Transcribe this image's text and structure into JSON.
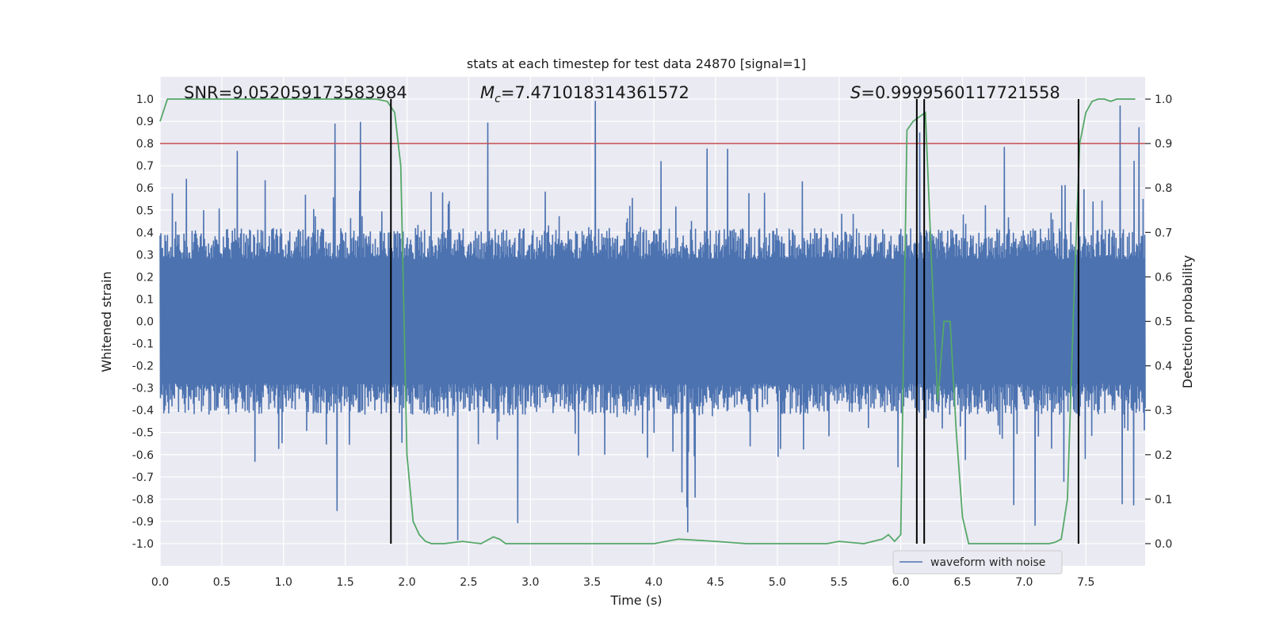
{
  "chart_data": {
    "type": "line",
    "title": "stats at each timestep for test data 24870 [signal=1]",
    "xlabel": "Time (s)",
    "ylabel_left": "Whitened strain",
    "ylabel_right": "Detection probability",
    "xlim": [
      0.0,
      7.98
    ],
    "ylim_left": [
      -1.1,
      1.1
    ],
    "ylim_right": [
      -0.05,
      1.05
    ],
    "x_ticks": [
      "0.0",
      "0.5",
      "1.0",
      "1.5",
      "2.0",
      "2.5",
      "3.0",
      "3.5",
      "4.0",
      "4.5",
      "5.0",
      "5.5",
      "6.0",
      "6.5",
      "7.0",
      "7.5"
    ],
    "y_ticks_left": [
      "1.0",
      "0.9",
      "0.8",
      "0.7",
      "0.6",
      "0.5",
      "0.4",
      "0.3",
      "0.2",
      "0.1",
      "0.0",
      "-0.1",
      "-0.2",
      "-0.3",
      "-0.4",
      "-0.5",
      "-0.6",
      "-0.7",
      "-0.8",
      "-0.9",
      "-1.0"
    ],
    "y_ticks_right": [
      "1.0",
      "0.9",
      "0.8",
      "0.7",
      "0.6",
      "0.5",
      "0.4",
      "0.3",
      "0.2",
      "0.1",
      "0.0"
    ],
    "grid": true,
    "legend_position": "lower-right",
    "annotations": {
      "snr": "SNR=9.052059173583984",
      "mc_symbol": "M",
      "mc_sub": "c",
      "mc_value": "=7.471018314361572",
      "s_symbol": "S",
      "s_value": "=0.9999560117721558"
    },
    "series": [
      {
        "name": "waveform with noise",
        "axis": "left",
        "color": "#4c72b0",
        "style": "noisy-strain",
        "approx_envelope": [
          -1.0,
          1.0
        ]
      },
      {
        "axis": "right",
        "color": "#55a868",
        "x": [
          0.0,
          0.06,
          0.2,
          0.5,
          1.0,
          1.5,
          1.75,
          1.84,
          1.9,
          1.95,
          2.0,
          2.05,
          2.1,
          2.15,
          2.2,
          2.3,
          2.45,
          2.6,
          2.7,
          2.75,
          2.8,
          3.0,
          3.5,
          4.0,
          4.1,
          4.2,
          4.5,
          4.75,
          5.0,
          5.4,
          5.5,
          5.7,
          5.85,
          5.9,
          5.95,
          6.0,
          6.05,
          6.1,
          6.2,
          6.25,
          6.3,
          6.35,
          6.4,
          6.45,
          6.5,
          6.55,
          6.6,
          7.0,
          7.2,
          7.25,
          7.3,
          7.35,
          7.4,
          7.45,
          7.5,
          7.55,
          7.6,
          7.65,
          7.7,
          7.75,
          7.8,
          7.9
        ],
        "y": [
          0.95,
          1.0,
          1.0,
          1.0,
          1.0,
          1.0,
          1.0,
          0.995,
          0.97,
          0.85,
          0.2,
          0.05,
          0.02,
          0.005,
          0.0,
          0.0,
          0.005,
          0.0,
          0.015,
          0.01,
          0.0,
          0.0,
          0.0,
          0.0,
          0.005,
          0.01,
          0.005,
          0.0,
          0.0,
          0.0,
          0.005,
          0.0,
          0.01,
          0.02,
          0.005,
          0.02,
          0.93,
          0.95,
          0.97,
          0.63,
          0.32,
          0.5,
          0.5,
          0.25,
          0.06,
          0.0,
          0.0,
          0.0,
          0.0,
          0.003,
          0.01,
          0.1,
          0.53,
          0.9,
          0.97,
          0.995,
          1.0,
          1.0,
          0.995,
          1.0,
          1.0,
          1.0
        ]
      }
    ],
    "threshold": {
      "axis": "left",
      "value": 0.8,
      "color": "#c44e52"
    },
    "vlines": {
      "times": [
        1.87,
        6.13,
        6.19,
        7.44
      ],
      "ymin": 0.0,
      "ymax": 1.0,
      "axis": "right",
      "color": "#000000"
    }
  }
}
